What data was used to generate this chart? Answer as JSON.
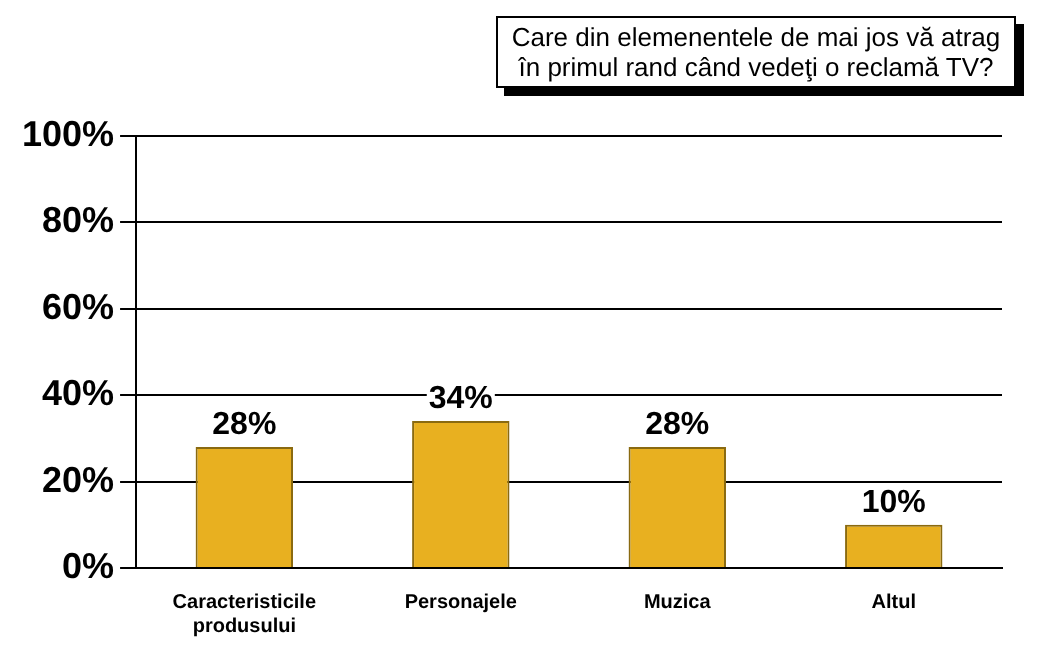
{
  "chart_data": {
    "type": "bar",
    "title": "Care din elemenentele de mai jos vă atrag în primul rand când vedeţi o reclamă TV?",
    "categories": [
      "Caracteristicile produsului",
      "Personajele",
      "Muzica",
      "Altul"
    ],
    "values": [
      28,
      34,
      28,
      10
    ],
    "color": "#e8b020",
    "value_labels": [
      "28%",
      "34%",
      "28%",
      "10%"
    ],
    "ylim": [
      0,
      100
    ],
    "yticks": [
      {
        "value": 0,
        "label": "0%"
      },
      {
        "value": 20,
        "label": "20%"
      },
      {
        "value": 40,
        "label": "40%"
      },
      {
        "value": 60,
        "label": "60%"
      },
      {
        "value": 80,
        "label": "80%"
      },
      {
        "value": 100,
        "label": "100%"
      }
    ],
    "grid": "y",
    "legend": false
  }
}
